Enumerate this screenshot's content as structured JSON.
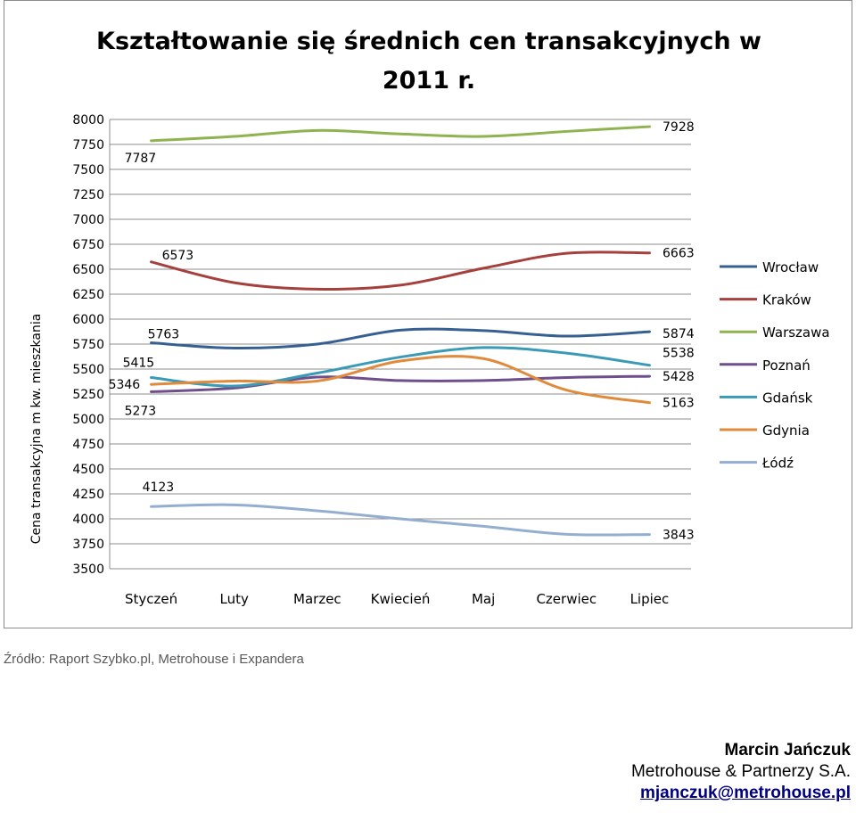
{
  "chart_data": {
    "type": "line",
    "title_line1": "Kształtowanie się średnich cen transakcyjnych w",
    "title_line2": "2011 r.",
    "ylabel": "Cena transakcyjna m kw. mieszkania",
    "xlabel": "",
    "ylim": [
      3500,
      8000
    ],
    "yticks": [
      3500,
      3750,
      4000,
      4250,
      4500,
      4750,
      5000,
      5250,
      5500,
      5750,
      6000,
      6250,
      6500,
      6750,
      7000,
      7250,
      7500,
      7750,
      8000
    ],
    "grid": true,
    "legend_position": "right",
    "categories": [
      "Styczeń",
      "Luty",
      "Marzec",
      "Kwiecień",
      "Maj",
      "Czerwiec",
      "Lipiec"
    ],
    "series": [
      {
        "name": "Wrocław",
        "color": "#376092",
        "values": [
          5763,
          5710,
          5750,
          5890,
          5885,
          5830,
          5874
        ],
        "start_label": "5763",
        "end_label": "5874"
      },
      {
        "name": "Kraków",
        "color": "#a5403d",
        "values": [
          6573,
          6365,
          6300,
          6340,
          6510,
          6660,
          6663
        ],
        "start_label": "6573",
        "end_label": "6663"
      },
      {
        "name": "Warszawa",
        "color": "#8fb350",
        "values": [
          7787,
          7830,
          7890,
          7855,
          7830,
          7880,
          7928
        ],
        "start_label": "7787",
        "end_label": "7928"
      },
      {
        "name": "Poznań",
        "color": "#6e4f8c",
        "values": [
          5273,
          5310,
          5420,
          5385,
          5385,
          5415,
          5428
        ],
        "start_label": "5273",
        "end_label": "5428"
      },
      {
        "name": "Gdańsk",
        "color": "#3b9ab5",
        "values": [
          5415,
          5330,
          5460,
          5620,
          5715,
          5660,
          5538
        ],
        "start_label": "5415",
        "end_label": "5538"
      },
      {
        "name": "Gdynia",
        "color": "#e08a3c",
        "values": [
          5346,
          5380,
          5380,
          5580,
          5605,
          5290,
          5163
        ],
        "start_label": "5346",
        "end_label": "5163"
      },
      {
        "name": "Łódź",
        "color": "#94aed2",
        "values": [
          4123,
          4140,
          4080,
          4000,
          3925,
          3845,
          3843
        ],
        "start_label": "4123",
        "end_label": "3843"
      }
    ]
  },
  "footer": {
    "source": "Źródło: Raport Szybko.pl, Metrohouse i Expandera",
    "author_name": "Marcin Jańczuk",
    "author_company": "Metrohouse & Partnerzy S.A.",
    "author_email": "mjanczuk@metrohouse.pl"
  }
}
